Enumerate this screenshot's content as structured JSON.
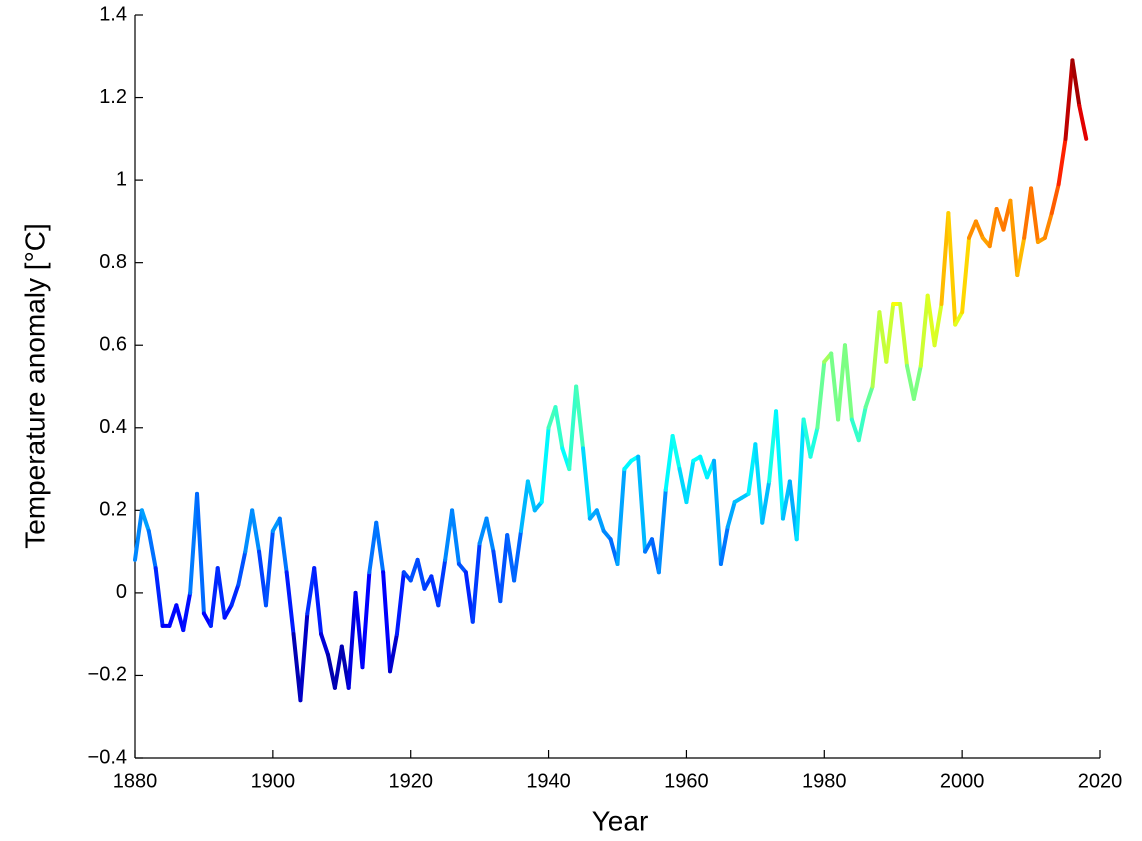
{
  "chart_data": {
    "type": "line",
    "colormap": "jet",
    "xlabel": "Year",
    "ylabel": "Temperature anomaly [°C]",
    "x": [
      1880,
      1881,
      1882,
      1883,
      1884,
      1885,
      1886,
      1887,
      1888,
      1889,
      1890,
      1891,
      1892,
      1893,
      1894,
      1895,
      1896,
      1897,
      1898,
      1899,
      1900,
      1901,
      1902,
      1903,
      1904,
      1905,
      1906,
      1907,
      1908,
      1909,
      1910,
      1911,
      1912,
      1913,
      1914,
      1915,
      1916,
      1917,
      1918,
      1919,
      1920,
      1921,
      1922,
      1923,
      1924,
      1925,
      1926,
      1927,
      1928,
      1929,
      1930,
      1931,
      1932,
      1933,
      1934,
      1935,
      1936,
      1937,
      1938,
      1939,
      1940,
      1941,
      1942,
      1943,
      1944,
      1945,
      1946,
      1947,
      1948,
      1949,
      1950,
      1951,
      1952,
      1953,
      1954,
      1955,
      1956,
      1957,
      1958,
      1959,
      1960,
      1961,
      1962,
      1963,
      1964,
      1965,
      1966,
      1967,
      1968,
      1969,
      1970,
      1971,
      1972,
      1973,
      1974,
      1975,
      1976,
      1977,
      1978,
      1979,
      1980,
      1981,
      1982,
      1983,
      1984,
      1985,
      1986,
      1987,
      1988,
      1989,
      1990,
      1991,
      1992,
      1993,
      1994,
      1995,
      1996,
      1997,
      1998,
      1999,
      2000,
      2001,
      2002,
      2003,
      2004,
      2005,
      2006,
      2007,
      2008,
      2009,
      2010,
      2011,
      2012,
      2013,
      2014,
      2015,
      2016,
      2017,
      2018
    ],
    "values": [
      0.08,
      0.2,
      0.15,
      0.06,
      -0.08,
      -0.08,
      -0.03,
      -0.09,
      0.0,
      0.24,
      -0.05,
      -0.08,
      0.06,
      -0.06,
      -0.03,
      0.02,
      0.1,
      0.2,
      0.1,
      -0.03,
      0.15,
      0.18,
      0.05,
      -0.1,
      -0.26,
      -0.05,
      0.06,
      -0.1,
      -0.15,
      -0.23,
      -0.13,
      -0.23,
      0.0,
      -0.18,
      0.05,
      0.17,
      0.05,
      -0.19,
      -0.1,
      0.05,
      0.03,
      0.08,
      0.01,
      0.04,
      -0.03,
      0.08,
      0.2,
      0.07,
      0.05,
      -0.07,
      0.12,
      0.18,
      0.1,
      -0.02,
      0.14,
      0.03,
      0.15,
      0.27,
      0.2,
      0.22,
      0.4,
      0.45,
      0.35,
      0.3,
      0.5,
      0.35,
      0.18,
      0.2,
      0.15,
      0.13,
      0.07,
      0.3,
      0.32,
      0.33,
      0.1,
      0.13,
      0.05,
      0.25,
      0.38,
      0.3,
      0.22,
      0.32,
      0.33,
      0.28,
      0.32,
      0.07,
      0.16,
      0.22,
      0.23,
      0.24,
      0.36,
      0.17,
      0.27,
      0.44,
      0.18,
      0.27,
      0.13,
      0.42,
      0.33,
      0.4,
      0.56,
      0.58,
      0.42,
      0.6,
      0.42,
      0.37,
      0.45,
      0.5,
      0.68,
      0.56,
      0.7,
      0.7,
      0.55,
      0.47,
      0.55,
      0.72,
      0.6,
      0.7,
      0.92,
      0.65,
      0.68,
      0.86,
      0.9,
      0.86,
      0.84,
      0.93,
      0.88,
      0.95,
      0.77,
      0.86,
      0.98,
      0.85,
      0.86,
      0.92,
      0.99,
      1.1,
      1.29,
      1.18,
      1.1
    ],
    "xlim": [
      1880,
      2020
    ],
    "xticks": [
      1880,
      1900,
      1920,
      1940,
      1960,
      1980,
      2000,
      2020
    ],
    "ylim": [
      -0.4,
      1.4
    ],
    "yticks": [
      {
        "value": -0.4,
        "label": "−0.4"
      },
      {
        "value": -0.2,
        "label": "−0.2"
      },
      0,
      0.2,
      0.4,
      0.6,
      0.8,
      1,
      1.2,
      1.4
    ],
    "grid": false
  }
}
